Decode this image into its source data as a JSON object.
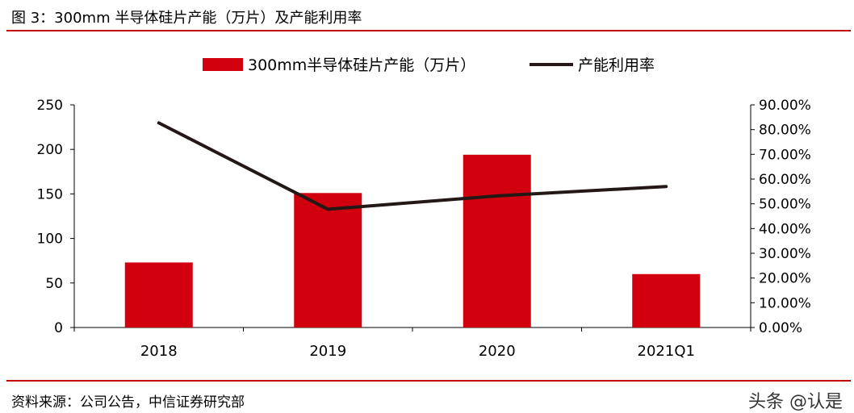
{
  "figure_title": "图 3：300mm 半导体硅片产能（万片）及产能利用率",
  "source": "资料来源：公司公告，中信证券研究部",
  "watermark": "头条 @认是",
  "colors": {
    "bar": "#d0000f",
    "line": "#231815",
    "rule": "#c00000"
  },
  "chart_data": {
    "type": "bar+line",
    "categories": [
      "2018",
      "2019",
      "2020",
      "2021Q1"
    ],
    "series": [
      {
        "name": "300mm半导体硅片产能（万片）",
        "type": "bar",
        "axis": "left",
        "values": [
          73,
          151,
          194,
          60
        ]
      },
      {
        "name": "产能利用率",
        "type": "line",
        "axis": "right",
        "values": [
          0.827,
          0.478,
          0.532,
          0.57
        ]
      }
    ],
    "y_left": {
      "range": [
        0,
        250
      ],
      "ticks": [
        0,
        50,
        100,
        150,
        200,
        250
      ]
    },
    "y_right": {
      "range": [
        0,
        0.9
      ],
      "ticks": [
        "0.00%",
        "10.00%",
        "20.00%",
        "30.00%",
        "40.00%",
        "50.00%",
        "60.00%",
        "70.00%",
        "80.00%",
        "90.00%"
      ]
    },
    "legend_position": "top-center",
    "grid": false
  }
}
